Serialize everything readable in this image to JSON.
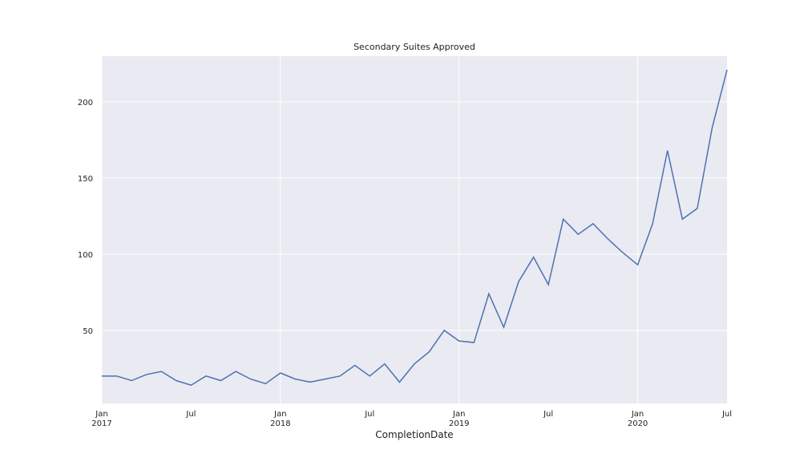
{
  "chart_data": {
    "type": "line",
    "title": "Secondary Suites Approved",
    "xlabel": "CompletionDate",
    "ylabel": "",
    "grid": true,
    "colors": {
      "background": "#eaeaf2",
      "grid": "#ffffff",
      "line": "#4c72b0"
    },
    "x_range": [
      "2017-01",
      "2020-07"
    ],
    "ylim": [
      2,
      230
    ],
    "y_ticks": [
      50,
      100,
      150,
      200
    ],
    "x_ticks": [
      {
        "date": "2017-01",
        "line1": "Jan",
        "line2": "2017",
        "major": true
      },
      {
        "date": "2017-07",
        "line1": "Jul",
        "line2": "",
        "major": false
      },
      {
        "date": "2018-01",
        "line1": "Jan",
        "line2": "2018",
        "major": true
      },
      {
        "date": "2018-07",
        "line1": "Jul",
        "line2": "",
        "major": false
      },
      {
        "date": "2019-01",
        "line1": "Jan",
        "line2": "2019",
        "major": true
      },
      {
        "date": "2019-07",
        "line1": "Jul",
        "line2": "",
        "major": false
      },
      {
        "date": "2020-01",
        "line1": "Jan",
        "line2": "2020",
        "major": true
      },
      {
        "date": "2020-07",
        "line1": "Jul",
        "line2": "",
        "major": false
      }
    ],
    "series": [
      {
        "x": [
          "2017-01",
          "2017-02",
          "2017-03",
          "2017-04",
          "2017-05",
          "2017-06",
          "2017-07",
          "2017-08",
          "2017-09",
          "2017-10",
          "2017-11",
          "2017-12",
          "2018-01",
          "2018-02",
          "2018-03",
          "2018-04",
          "2018-05",
          "2018-06",
          "2018-07",
          "2018-08",
          "2018-09",
          "2018-10",
          "2018-11",
          "2018-12",
          "2019-01",
          "2019-02",
          "2019-03",
          "2019-04",
          "2019-05",
          "2019-06",
          "2019-07",
          "2019-08",
          "2019-09",
          "2019-10",
          "2019-11",
          "2019-12",
          "2020-01",
          "2020-02",
          "2020-03",
          "2020-04",
          "2020-05",
          "2020-06",
          "2020-07"
        ],
        "values": [
          20,
          20,
          17,
          21,
          23,
          17,
          14,
          20,
          17,
          23,
          18,
          15,
          22,
          18,
          16,
          18,
          20,
          27,
          20,
          28,
          16,
          28,
          36,
          50,
          43,
          42,
          74,
          52,
          82,
          98,
          80,
          123,
          113,
          120,
          110,
          101,
          93,
          120,
          168,
          123,
          130,
          183,
          221
        ]
      }
    ]
  }
}
